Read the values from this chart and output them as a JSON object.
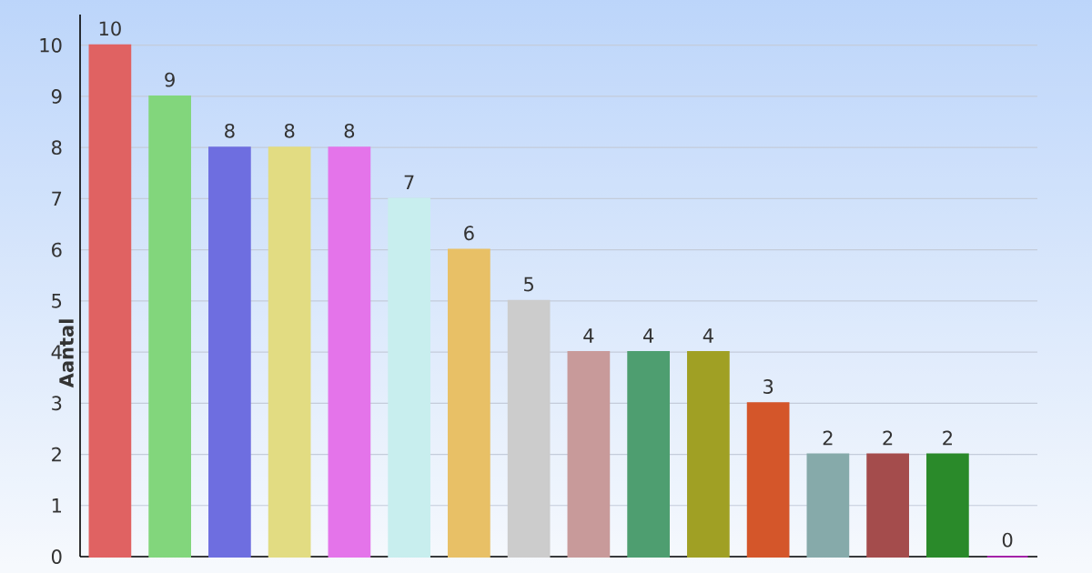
{
  "chart_data": {
    "type": "bar",
    "ylabel": "Aantal",
    "categories": [
      null,
      null,
      null,
      null,
      null,
      null,
      null,
      null,
      null,
      null,
      null,
      null,
      null,
      null,
      null,
      null
    ],
    "values": [
      10,
      9,
      8,
      8,
      8,
      7,
      6,
      5,
      4,
      4,
      4,
      3,
      2,
      2,
      2,
      0
    ],
    "colors": [
      "#e06262",
      "#82d67c",
      "#6e6ee0",
      "#e2dc82",
      "#e474ea",
      "#c8eeee",
      "#e8c066",
      "#cccccc",
      "#c89a9a",
      "#4e9e70",
      "#a0a024",
      "#d4562a",
      "#86aaaa",
      "#a44c4c",
      "#2a8a2a",
      "#a422a8"
    ],
    "ylim": [
      0,
      10.6
    ],
    "yticks": [
      0,
      1,
      2,
      3,
      4,
      5,
      6,
      7,
      8,
      9,
      10
    ],
    "grid": "y",
    "data_labels": true
  }
}
